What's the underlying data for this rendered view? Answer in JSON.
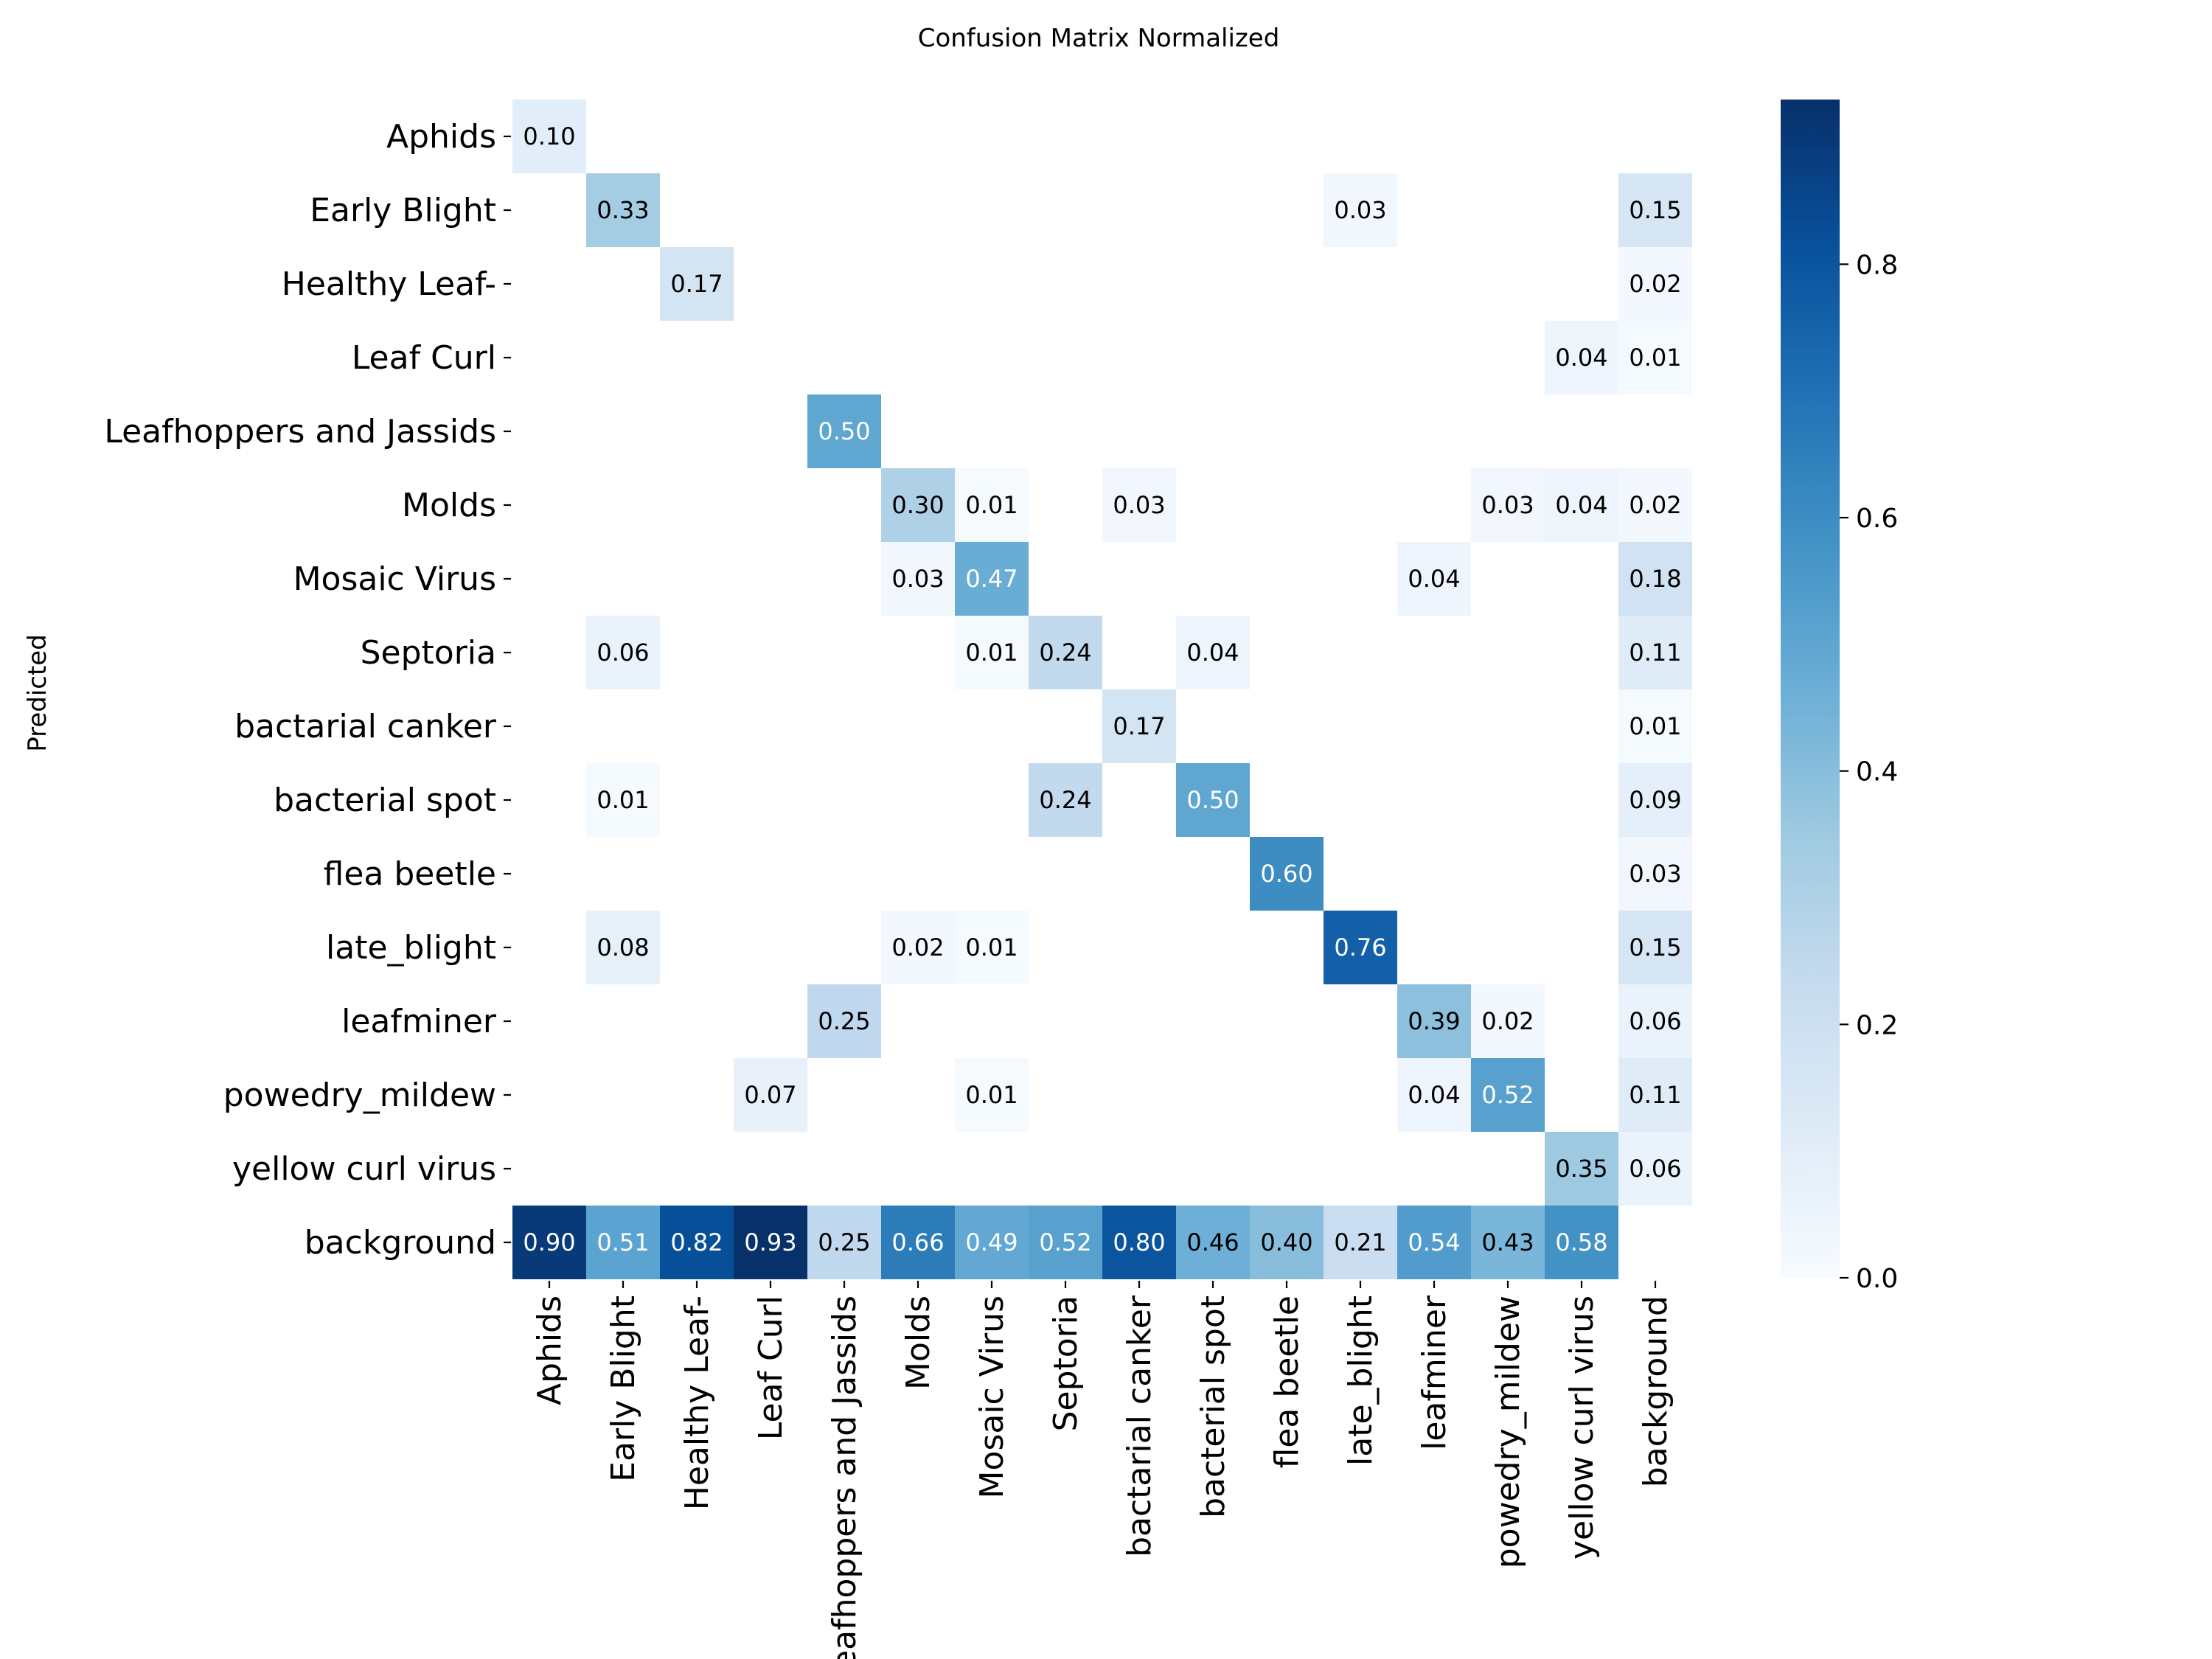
{
  "chart_data": {
    "type": "heatmap",
    "title": "Confusion Matrix Normalized",
    "xlabel": "",
    "ylabel": "Predicted",
    "x_tick_labels": [
      "Aphids",
      "Early Blight",
      "Healthy Leaf-",
      "Leaf Curl",
      "Leafhoppers and Jassids",
      "Molds",
      "Mosaic Virus",
      "Septoria",
      "bactarial canker",
      "bacterial spot",
      "flea beetle",
      "late_blight",
      "leafminer",
      "powedry_mildew",
      "yellow curl virus",
      "background"
    ],
    "y_tick_labels": [
      "Aphids",
      "Early Blight",
      "Healthy Leaf-",
      "Leaf Curl",
      "Leafhoppers and Jassids",
      "Molds",
      "Mosaic Virus",
      "Septoria",
      "bactarial canker",
      "bacterial spot",
      "flea beetle",
      "late_blight",
      "leafminer",
      "powedry_mildew",
      "yellow curl virus",
      "background"
    ],
    "matrix": [
      [
        0.1,
        null,
        null,
        null,
        null,
        null,
        null,
        null,
        null,
        null,
        null,
        null,
        null,
        null,
        null,
        null
      ],
      [
        null,
        0.33,
        null,
        null,
        null,
        null,
        null,
        null,
        null,
        null,
        null,
        0.03,
        null,
        null,
        null,
        0.15
      ],
      [
        null,
        null,
        0.17,
        null,
        null,
        null,
        null,
        null,
        null,
        null,
        null,
        null,
        null,
        null,
        null,
        0.02
      ],
      [
        null,
        null,
        null,
        null,
        null,
        null,
        null,
        null,
        null,
        null,
        null,
        null,
        null,
        null,
        0.04,
        0.01
      ],
      [
        null,
        null,
        null,
        null,
        0.5,
        null,
        null,
        null,
        null,
        null,
        null,
        null,
        null,
        null,
        null,
        null
      ],
      [
        null,
        null,
        null,
        null,
        null,
        0.3,
        0.01,
        null,
        0.03,
        null,
        null,
        null,
        null,
        0.03,
        0.04,
        0.02
      ],
      [
        null,
        null,
        null,
        null,
        null,
        0.03,
        0.47,
        null,
        null,
        null,
        null,
        null,
        0.04,
        null,
        null,
        0.18
      ],
      [
        null,
        0.06,
        null,
        null,
        null,
        null,
        0.01,
        0.24,
        null,
        0.04,
        null,
        null,
        null,
        null,
        null,
        0.11
      ],
      [
        null,
        null,
        null,
        null,
        null,
        null,
        null,
        null,
        0.17,
        null,
        null,
        null,
        null,
        null,
        null,
        0.01
      ],
      [
        null,
        0.01,
        null,
        null,
        null,
        null,
        null,
        0.24,
        null,
        0.5,
        null,
        null,
        null,
        null,
        null,
        0.09
      ],
      [
        null,
        null,
        null,
        null,
        null,
        null,
        null,
        null,
        null,
        null,
        0.6,
        null,
        null,
        null,
        null,
        0.03
      ],
      [
        null,
        0.08,
        null,
        null,
        null,
        0.02,
        0.01,
        null,
        null,
        null,
        null,
        0.76,
        null,
        null,
        null,
        0.15
      ],
      [
        null,
        null,
        null,
        null,
        0.25,
        null,
        null,
        null,
        null,
        null,
        null,
        null,
        0.39,
        0.02,
        null,
        0.06
      ],
      [
        null,
        null,
        null,
        0.07,
        null,
        null,
        0.01,
        null,
        null,
        null,
        null,
        null,
        0.04,
        0.52,
        null,
        0.11
      ],
      [
        null,
        null,
        null,
        null,
        null,
        null,
        null,
        null,
        null,
        null,
        null,
        null,
        null,
        null,
        0.35,
        0.06
      ],
      [
        0.9,
        0.51,
        0.82,
        0.93,
        0.25,
        0.66,
        0.49,
        0.52,
        0.8,
        0.46,
        0.4,
        0.21,
        0.54,
        0.43,
        0.58,
        null
      ]
    ],
    "value_format": "0.00",
    "colormap": "Blues",
    "vmin": 0.0,
    "vmax": 0.93,
    "colorbar_ticks": [
      0.0,
      0.2,
      0.4,
      0.6,
      0.8
    ],
    "colorbar_tick_labels": [
      "0.0",
      "0.2",
      "0.4",
      "0.6",
      "0.8"
    ],
    "colors": {
      "cmap_stops": [
        "#f7fbff",
        "#deebf7",
        "#c6dbef",
        "#9ecae1",
        "#6baed6",
        "#4292c6",
        "#2171b5",
        "#08519c",
        "#08306b"
      ],
      "text_dark": "#000000",
      "text_light": "#ffffff"
    }
  }
}
